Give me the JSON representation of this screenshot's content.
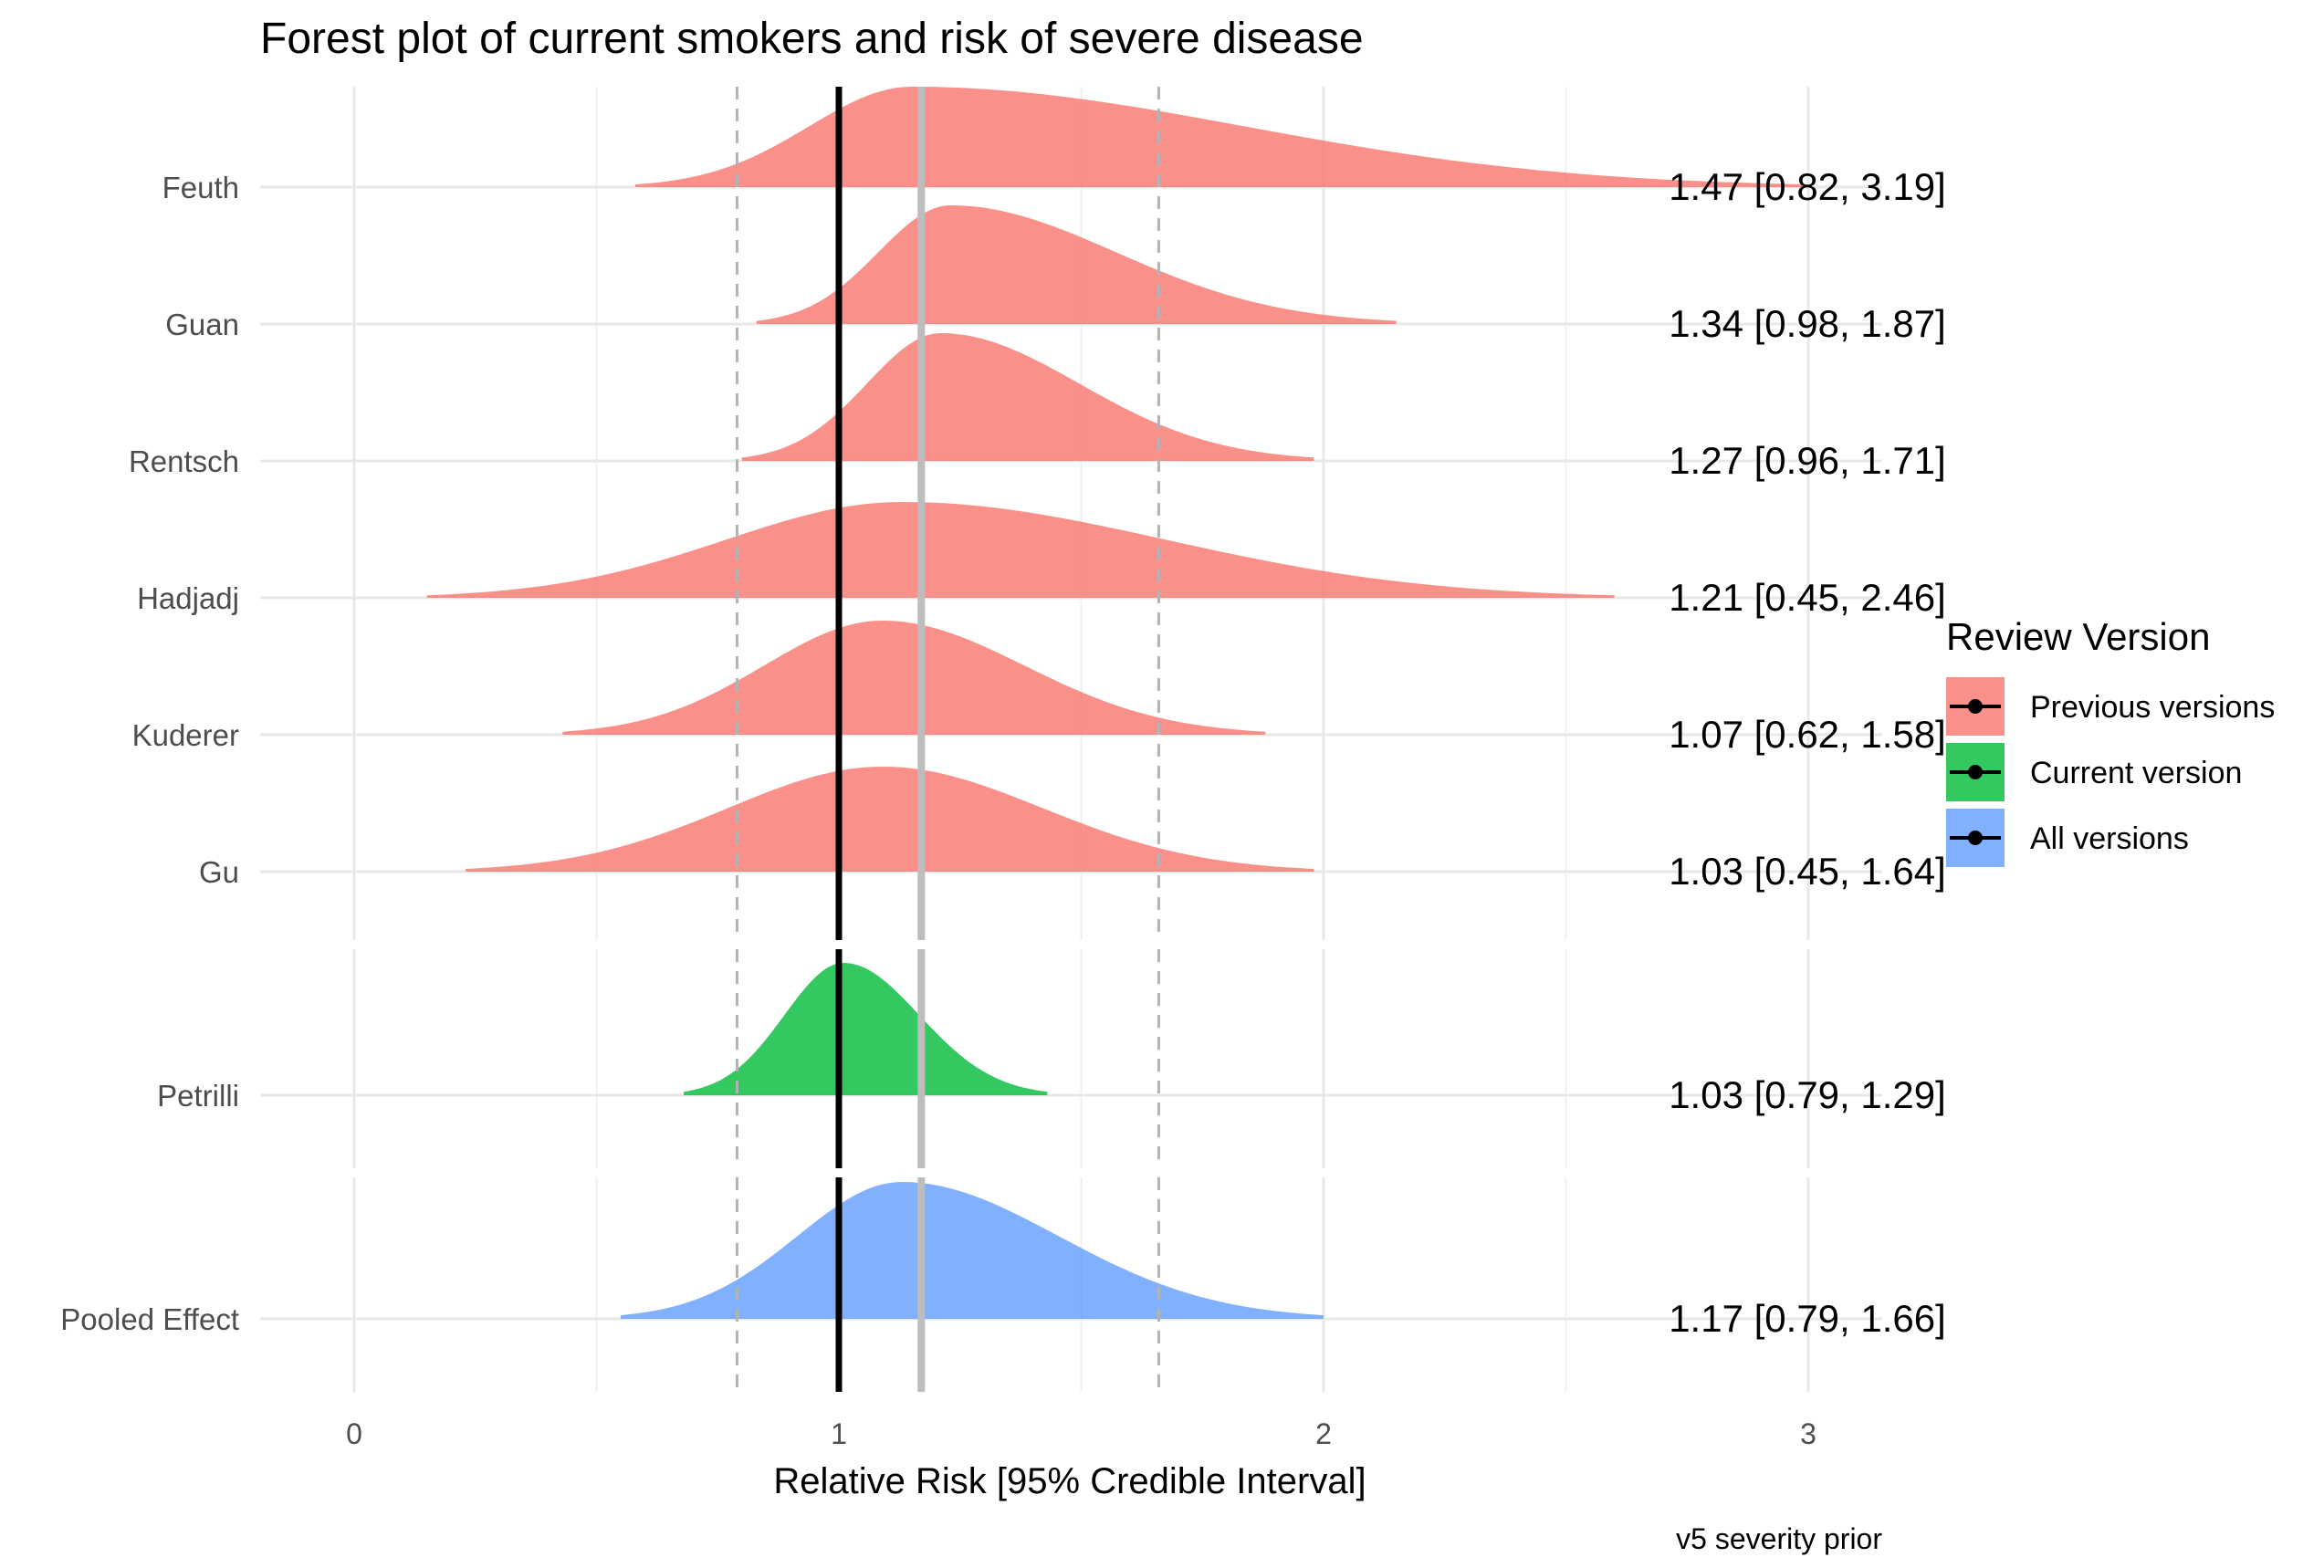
{
  "chart_data": {
    "type": "area",
    "title": "Forest plot of current smokers and risk of severe disease",
    "xlabel": "Relative Risk [95% Credible Interval]",
    "ylabel": "",
    "caption": "v5 severity prior",
    "xlim": [
      -0.2,
      3.15
    ],
    "xticks": [
      "0",
      "1",
      "2",
      "3"
    ],
    "grid": true,
    "null_line": 1,
    "pooled_estimate_line": 1.17,
    "pooled_interval_lines": [
      0.79,
      1.66
    ],
    "legend": {
      "title": "Review Version",
      "position": "right",
      "items": [
        {
          "label": "Previous versions",
          "color": "#F8766D"
        },
        {
          "label": "Current version",
          "color": "#00BA38"
        },
        {
          "label": "All versions",
          "color": "#619CFF"
        }
      ]
    },
    "series": [
      {
        "name": "Feuth",
        "group": "Previous versions",
        "estimate": 1.47,
        "lower": 0.82,
        "upper": 3.19,
        "label": "1.47 [0.82, 3.19]",
        "mode": 1.15,
        "range": [
          0.58,
          3.0
        ]
      },
      {
        "name": "Guan",
        "group": "Previous versions",
        "estimate": 1.34,
        "lower": 0.98,
        "upper": 1.87,
        "label": "1.34 [0.98, 1.87]",
        "mode": 1.23,
        "range": [
          0.83,
          2.15
        ]
      },
      {
        "name": "Rentsch",
        "group": "Previous versions",
        "estimate": 1.27,
        "lower": 0.96,
        "upper": 1.71,
        "label": "1.27 [0.96, 1.71]",
        "mode": 1.21,
        "range": [
          0.8,
          1.98
        ]
      },
      {
        "name": "Hadjadj",
        "group": "Previous versions",
        "estimate": 1.21,
        "lower": 0.45,
        "upper": 2.46,
        "label": "1.21 [0.45, 2.46]",
        "mode": 1.13,
        "range": [
          0.15,
          2.6
        ]
      },
      {
        "name": "Kuderer",
        "group": "Previous versions",
        "estimate": 1.07,
        "lower": 0.62,
        "upper": 1.58,
        "label": "1.07 [0.62, 1.58]",
        "mode": 1.09,
        "range": [
          0.43,
          1.88
        ]
      },
      {
        "name": "Gu",
        "group": "Previous versions",
        "estimate": 1.03,
        "lower": 0.45,
        "upper": 1.64,
        "label": "1.03 [0.45, 1.64]",
        "mode": 1.09,
        "range": [
          0.23,
          1.98
        ]
      },
      {
        "name": "Petrilli",
        "group": "Current version",
        "estimate": 1.03,
        "lower": 0.79,
        "upper": 1.29,
        "label": "1.03 [0.79, 1.29]",
        "mode": 1.01,
        "range": [
          0.68,
          1.43
        ]
      },
      {
        "name": "Pooled Effect",
        "group": "All versions",
        "estimate": 1.17,
        "lower": 0.79,
        "upper": 1.66,
        "label": "1.17 [0.79, 1.66]",
        "mode": 1.13,
        "range": [
          0.55,
          2.0
        ]
      }
    ]
  }
}
